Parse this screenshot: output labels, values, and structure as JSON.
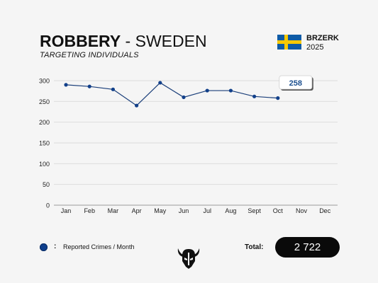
{
  "header": {
    "title_bold": "ROBBERY",
    "title_rest": " - SWEDEN",
    "subtitle": "TARGETING INDIVIDUALS"
  },
  "brand": {
    "name": "BRZERK",
    "year": "2025",
    "flag": "sweden-flag"
  },
  "colors": {
    "line": "#1b3f7a",
    "marker": "#12408a",
    "grid": "#dcdcdc",
    "callout_text": "#1b4f8f"
  },
  "chart_data": {
    "type": "line",
    "categories": [
      "Jan",
      "Feb",
      "Mar",
      "Apr",
      "May",
      "Jun",
      "Jul",
      "Aug",
      "Sept",
      "Oct",
      "Nov",
      "Dec"
    ],
    "series": [
      {
        "name": "Reported Crimes / Month",
        "values": [
          290,
          286,
          279,
          240,
          295,
          260,
          276,
          276,
          262,
          258,
          null,
          null
        ]
      }
    ],
    "ylim": [
      0,
      300
    ],
    "yticks": [
      0,
      50,
      100,
      150,
      200,
      250,
      300
    ],
    "grid": true,
    "callout": {
      "category": "Oct",
      "value": "258"
    },
    "legend_position": "bottom-left"
  },
  "legend": {
    "label": "Reported Crimes / Month",
    "separator": ":"
  },
  "total": {
    "label": "Total:",
    "value": "2 722"
  }
}
